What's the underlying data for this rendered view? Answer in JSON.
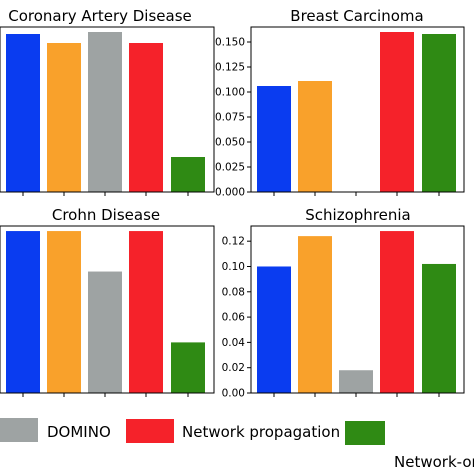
{
  "chart_data": [
    {
      "type": "bar",
      "title": "Coronary Artery Disease",
      "series": [
        {
          "values": [
            0.158,
            0.149,
            0.16,
            0.149,
            0.035
          ]
        }
      ],
      "ylim": [
        0,
        0.165
      ],
      "yticks": [],
      "grid": false
    },
    {
      "type": "bar",
      "title": "Breast Carcinoma",
      "series": [
        {
          "values": [
            0.106,
            0.111,
            0.0,
            0.16,
            0.158
          ]
        }
      ],
      "ylim": [
        0,
        0.165
      ],
      "yticks": [
        "0.000",
        "0.025",
        "0.050",
        "0.075",
        "0.100",
        "0.125",
        "0.150"
      ],
      "grid": false
    },
    {
      "type": "bar",
      "title": "Crohn Disease",
      "series": [
        {
          "values": [
            0.16,
            0.16,
            0.12,
            0.16,
            0.05
          ]
        }
      ],
      "ylim": [
        0,
        0.165
      ],
      "yticks": [],
      "grid": false
    },
    {
      "type": "bar",
      "title": "Schizophrenia",
      "series": [
        {
          "values": [
            0.1,
            0.124,
            0.018,
            0.128,
            0.102
          ]
        }
      ],
      "ylim": [
        0,
        0.132
      ],
      "yticks": [
        "0.00",
        "0.02",
        "0.04",
        "0.06",
        "0.08",
        "0.10",
        "0.12"
      ],
      "grid": false
    }
  ],
  "bar_colors": [
    "#0a3cf0",
    "#f9a12b",
    "#9ea3a3",
    "#f5222a",
    "#2f8a14"
  ],
  "legend": [
    {
      "label": "DOMINO",
      "color": "#9ea3a3"
    },
    {
      "label": "Network propagation",
      "color": "#f5222a"
    },
    {
      "label": "Network-or",
      "color": "#2f8a14"
    }
  ]
}
